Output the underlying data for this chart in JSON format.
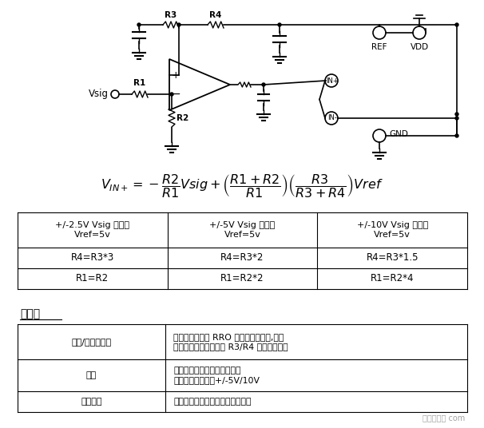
{
  "bg_color": "#ffffff",
  "table1_headers": [
    "+/-2.5V Vsig 范围，\nVref=5v",
    "+/-5V Vsig 范围，\nVref=5v",
    "+/-10V Vsig 范围，\nVref=5v"
  ],
  "table1_rows": [
    [
      "R4=R3*3",
      "R4=R3*2",
      "R4=R3*1.5"
    ],
    [
      "R1=R2",
      "R1=R2*2",
      "R1=R2*4"
    ]
  ],
  "table2_title": "利与弊",
  "table2_data": [
    [
      "裕量/单电源供电",
      "对单电源供电的 RRO 放大器效果良好,因为\n放大器输入共模电压由 R3/R4 分压器设置。"
    ],
    [
      "增益",
      "允许衰减增益和双极性输入。\n单电源供电时支持+/-5V/10V"
    ],
    [
      "输入阻抗",
      "高阻抗受放大器的输入漏电流限制"
    ]
  ],
  "watermark": "电子发烧友 com"
}
